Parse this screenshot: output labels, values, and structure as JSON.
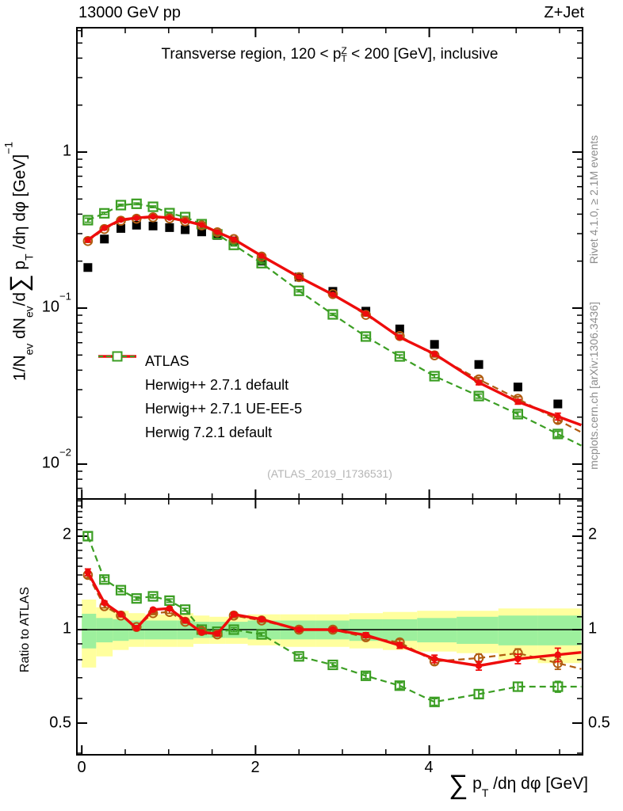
{
  "header": {
    "left": "13000 GeV pp",
    "right": "Z+Jet"
  },
  "panel_title": {
    "pre": "Transverse region, 120 < p",
    "stack_top": "Z",
    "stack_bottom": "T",
    "post": " < 200 [GeV], inclusive"
  },
  "credits": {
    "top": "Rivet 4.1.0, ≥ 2.1M events",
    "bottom": "mcplots.cern.ch [arXiv:1306.3436]"
  },
  "watermark": "(ATLAS_2019_I1736531)",
  "axes": {
    "y_main_label": {
      "p1": "1/N",
      "sub1": "ev",
      "p2": " dN",
      "sub2": "ev",
      "p3": "/d",
      "sum": "∑",
      "p4": " p",
      "sub3": "T",
      "p5": " /dη dφ  [GeV]",
      "exp": "−1"
    },
    "y_ratio_label": "Ratio to ATLAS",
    "x_label": {
      "sum": "∑",
      "p1": " p",
      "sub1": "T",
      "p2": " /dη dφ [GeV]"
    },
    "y_main_ticks": [
      {
        "base": "1",
        "exp": ""
      },
      {
        "base": "10",
        "exp": "−1"
      },
      {
        "base": "10",
        "exp": "−2"
      }
    ],
    "y_ratio_ticks_left": [
      "2",
      "1",
      "0.5"
    ],
    "y_ratio_ticks_right": [
      "2",
      "1",
      "0.5"
    ],
    "x_ticks": [
      "0",
      "2",
      "4"
    ]
  },
  "colors": {
    "black": "#000000",
    "red": "#ee0c0c",
    "brown": "#b05c10",
    "green": "#3b9e23",
    "band_outer": "#ffff9e",
    "band_inner": "#9df09d"
  },
  "chart_data": {
    "type": "line",
    "title": "Transverse region, 120 < pT(Z) < 200 [GeV], inclusive",
    "xlabel": "Sum pT /deta dphi [GeV]",
    "ylabel": "1/N_ev dN_ev/d Sum pT /deta dphi [GeV]^-1",
    "ylabel_ratio": "Ratio to ATLAS",
    "x_range": [
      -0.06,
      5.78
    ],
    "y_main_range_log": [
      0.006,
      6.3
    ],
    "y_ratio_range_log": [
      0.395,
      2.64
    ],
    "x_major_ticks": [
      0,
      2,
      4
    ],
    "x_minor_step": 0.5,
    "legend_position": "mid-left",
    "grid": false,
    "x": [
      0.07,
      0.26,
      0.45,
      0.63,
      0.82,
      1.01,
      1.19,
      1.38,
      1.56,
      1.75,
      2.07,
      2.5,
      2.89,
      3.27,
      3.66,
      4.06,
      4.57,
      5.02,
      5.48
    ],
    "series": [
      {
        "name": "ATLAS",
        "color": "#000000",
        "marker": "filled-square",
        "line": "none",
        "values": [
          0.182,
          0.277,
          0.324,
          0.34,
          0.336,
          0.328,
          0.318,
          0.308,
          0.292,
          0.27,
          0.2,
          0.158,
          0.128,
          0.0955,
          0.0735,
          0.0585,
          0.0435,
          0.0312,
          0.0243
        ],
        "err_frac": [
          0.02,
          0.015,
          0.012,
          0.012,
          0.012,
          0.012,
          0.012,
          0.012,
          0.012,
          0.015,
          0.015,
          0.015,
          0.015,
          0.018,
          0.02,
          0.02,
          0.022,
          0.025,
          0.03
        ]
      },
      {
        "name": "Herwig++ 2.7.1 default",
        "color": "#b05c10",
        "marker": "open-circle",
        "line": "dashed",
        "values": [
          0.269,
          0.321,
          0.363,
          0.374,
          0.382,
          0.376,
          0.36,
          0.339,
          0.306,
          0.277,
          0.214,
          0.158,
          0.123,
          0.0905,
          0.0662,
          0.0498,
          0.0349,
          0.0262,
          0.0192
        ],
        "ratio": [
          1.5,
          1.19,
          1.11,
          1.02,
          1.13,
          1.14,
          1.06,
          0.99,
          0.965,
          1.11,
          1.07,
          1.0,
          1.0,
          0.945,
          0.91,
          0.79,
          0.81,
          0.84,
          0.78
        ],
        "err_frac": [
          0.02,
          0.012,
          0.01,
          0.01,
          0.01,
          0.01,
          0.01,
          0.01,
          0.012,
          0.015,
          0.012,
          0.012,
          0.012,
          0.018,
          0.02,
          0.025,
          0.03,
          0.032,
          0.045
        ]
      },
      {
        "name": "Herwig++ 2.7.1 UE-EE-5",
        "color": "#ee0c0c",
        "marker": "filled-circle",
        "line": "solid",
        "values": [
          0.273,
          0.326,
          0.368,
          0.378,
          0.386,
          0.379,
          0.362,
          0.341,
          0.307,
          0.276,
          0.216,
          0.158,
          0.122,
          0.0921,
          0.065,
          0.0508,
          0.0333,
          0.0251,
          0.0202
        ],
        "ratio": [
          1.53,
          1.22,
          1.12,
          1.01,
          1.16,
          1.17,
          1.07,
          0.98,
          0.97,
          1.12,
          1.08,
          1.0,
          1.0,
          0.96,
          0.89,
          0.805,
          0.765,
          0.805,
          0.83
        ],
        "err_frac": [
          0.025,
          0.012,
          0.01,
          0.01,
          0.01,
          0.01,
          0.01,
          0.01,
          0.012,
          0.015,
          0.012,
          0.012,
          0.012,
          0.018,
          0.022,
          0.028,
          0.032,
          0.035,
          0.05
        ]
      },
      {
        "name": "Herwig 7.2.1 default",
        "color": "#3b9e23",
        "marker": "open-square",
        "line": "dashed",
        "values": [
          0.366,
          0.405,
          0.457,
          0.466,
          0.446,
          0.406,
          0.383,
          0.345,
          0.297,
          0.254,
          0.194,
          0.129,
          0.0911,
          0.0657,
          0.049,
          0.0366,
          0.0273,
          0.0209,
          0.0156
        ],
        "ratio": [
          2.0,
          1.45,
          1.34,
          1.26,
          1.28,
          1.24,
          1.16,
          1.0,
          0.985,
          1.0,
          0.965,
          0.82,
          0.77,
          0.71,
          0.66,
          0.585,
          0.62,
          0.655,
          0.655
        ],
        "err_frac": [
          0.03,
          0.015,
          0.012,
          0.012,
          0.012,
          0.012,
          0.01,
          0.01,
          0.012,
          0.015,
          0.012,
          0.015,
          0.015,
          0.02,
          0.022,
          0.025,
          0.03,
          0.032,
          0.04
        ]
      }
    ],
    "bands": {
      "outer_color": "#ffff9e",
      "inner_color": "#9df09d",
      "outer_hi": [
        1.25,
        1.18,
        1.15,
        1.13,
        1.12,
        1.12,
        1.13,
        1.11,
        1.1,
        1.1,
        1.12,
        1.12,
        1.12,
        1.13,
        1.14,
        1.15,
        1.15,
        1.17,
        1.17
      ],
      "outer_lo": [
        0.755,
        0.82,
        0.86,
        0.88,
        0.88,
        0.88,
        0.88,
        0.9,
        0.9,
        0.9,
        0.89,
        0.88,
        0.88,
        0.87,
        0.86,
        0.85,
        0.84,
        0.8,
        0.78
      ],
      "inner_hi": [
        1.125,
        1.09,
        1.08,
        1.07,
        1.07,
        1.07,
        1.07,
        1.06,
        1.06,
        1.06,
        1.07,
        1.07,
        1.07,
        1.08,
        1.08,
        1.09,
        1.1,
        1.11,
        1.11
      ],
      "inner_lo": [
        0.87,
        0.91,
        0.92,
        0.93,
        0.93,
        0.93,
        0.93,
        0.94,
        0.94,
        0.94,
        0.93,
        0.93,
        0.93,
        0.92,
        0.92,
        0.91,
        0.9,
        0.89,
        0.89
      ]
    }
  }
}
